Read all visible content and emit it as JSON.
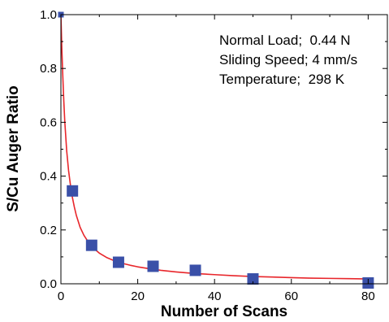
{
  "chart_data": {
    "type": "scatter",
    "xlabel": "Number of Scans",
    "ylabel": "S/Cu Auger Ratio",
    "xlim": [
      0,
      85
    ],
    "ylim": [
      0,
      1.0
    ],
    "x_ticks": [
      0,
      20,
      40,
      60,
      80
    ],
    "y_ticks": [
      0.0,
      0.2,
      0.4,
      0.6,
      0.8,
      1.0
    ],
    "x_tick_labels": [
      "0",
      "20",
      "40",
      "60",
      "80"
    ],
    "y_tick_labels": [
      "0.0",
      "0.2",
      "0.4",
      "0.6",
      "0.8",
      "1.0"
    ],
    "grid": false,
    "legend": false,
    "annotations": [
      "Normal Load;  0.44 N",
      "Sliding Speed; 4 mm/s",
      "Temperature;  298 K"
    ],
    "series": [
      {
        "type": "scatter",
        "marker": "square",
        "color": "#3a50a8",
        "x": [
          0,
          3,
          8,
          15,
          24,
          35,
          50,
          80
        ],
        "y": [
          1.0,
          0.345,
          0.143,
          0.08,
          0.065,
          0.05,
          0.018,
          0.003
        ]
      },
      {
        "type": "line",
        "color": "#e8262b",
        "x": [
          0,
          0.25,
          0.5,
          0.75,
          1,
          1.5,
          2,
          2.5,
          3,
          3.5,
          4,
          5,
          6,
          7,
          8,
          9,
          10,
          12,
          14,
          16,
          18,
          20,
          23,
          26,
          30,
          35,
          40,
          45,
          50,
          55,
          60,
          65,
          70,
          75,
          80
        ],
        "y": [
          1.0,
          0.87,
          0.77,
          0.68,
          0.605,
          0.495,
          0.42,
          0.365,
          0.32,
          0.285,
          0.255,
          0.21,
          0.18,
          0.158,
          0.14,
          0.126,
          0.114,
          0.097,
          0.085,
          0.076,
          0.069,
          0.063,
          0.056,
          0.05,
          0.044,
          0.038,
          0.034,
          0.03,
          0.027,
          0.025,
          0.023,
          0.021,
          0.02,
          0.019,
          0.018
        ]
      }
    ]
  }
}
